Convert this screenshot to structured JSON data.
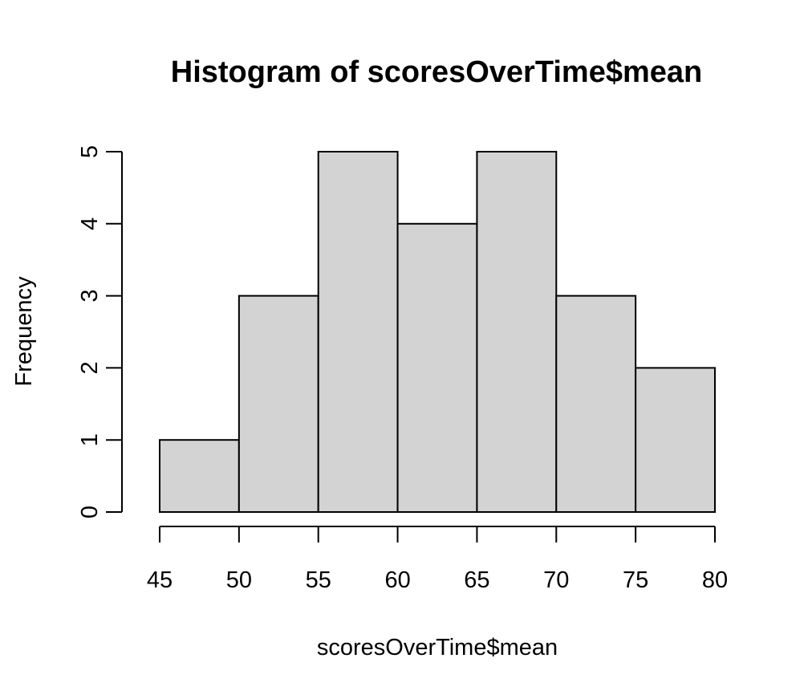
{
  "chart_data": {
    "type": "bar",
    "subtype": "histogram",
    "title": "Histogram of scoresOverTime$mean",
    "xlabel": "scoresOverTime$mean",
    "ylabel": "Frequency",
    "bins": [
      {
        "from": 45,
        "to": 50,
        "count": 1
      },
      {
        "from": 50,
        "to": 55,
        "count": 3
      },
      {
        "from": 55,
        "to": 60,
        "count": 5
      },
      {
        "from": 60,
        "to": 65,
        "count": 4
      },
      {
        "from": 65,
        "to": 70,
        "count": 5
      },
      {
        "from": 70,
        "to": 75,
        "count": 3
      },
      {
        "from": 75,
        "to": 80,
        "count": 2
      }
    ],
    "xlim": [
      45,
      80
    ],
    "ylim": [
      0,
      5
    ],
    "x_ticks": [
      "45",
      "50",
      "55",
      "60",
      "65",
      "70",
      "75",
      "80"
    ],
    "y_ticks": [
      "0",
      "1",
      "2",
      "3",
      "4",
      "5"
    ],
    "grid": false,
    "legend": "none",
    "bar_color": "#d3d3d3",
    "edge_color": "#000000"
  }
}
